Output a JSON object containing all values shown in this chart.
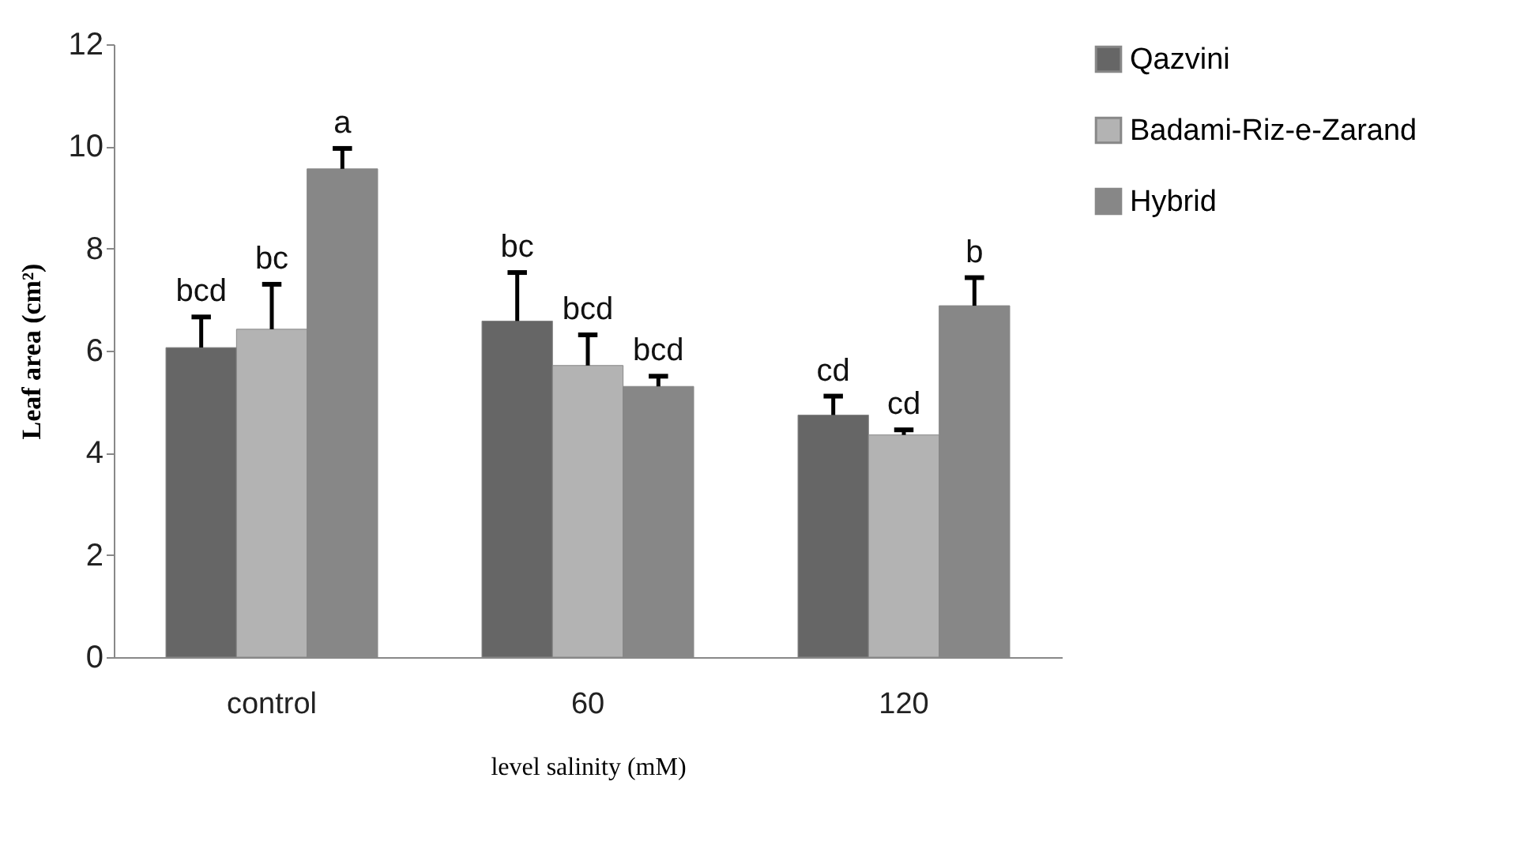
{
  "chart_data": {
    "type": "bar",
    "xlabel": "level salinity (mM)",
    "ylabel": "Leaf area (cm²)",
    "categories": [
      "control",
      "60",
      "120"
    ],
    "series": [
      {
        "name": "Qazvini",
        "color": "#666666",
        "values": [
          6.06,
          6.58,
          4.74
        ],
        "errors": [
          [
            6.06,
            6.66
          ],
          [
            6.58,
            7.53
          ],
          [
            4.74,
            5.11
          ]
        ]
      },
      {
        "name": "Badami-Riz-e-Zarand",
        "color": "#b3b3b3",
        "values": [
          6.42,
          5.71,
          4.35
        ],
        "errors": [
          [
            6.42,
            7.3
          ],
          [
            5.71,
            6.31
          ],
          [
            4.35,
            4.45
          ]
        ]
      },
      {
        "name": "Hybrid",
        "color": "#878787",
        "values": [
          9.56,
          5.3,
          6.88
        ],
        "errors": [
          [
            9.56,
            9.96
          ],
          [
            5.3,
            5.5
          ],
          [
            6.88,
            7.43
          ]
        ]
      }
    ],
    "annotations": [
      "bcd",
      "bc",
      "a",
      "bc",
      "bcd",
      "bcd",
      "cd",
      "cd",
      "b"
    ],
    "ylim": [
      0,
      12
    ],
    "yticks": [
      0,
      2,
      4,
      6,
      8,
      10,
      12
    ],
    "grid": false,
    "legend": "right"
  }
}
